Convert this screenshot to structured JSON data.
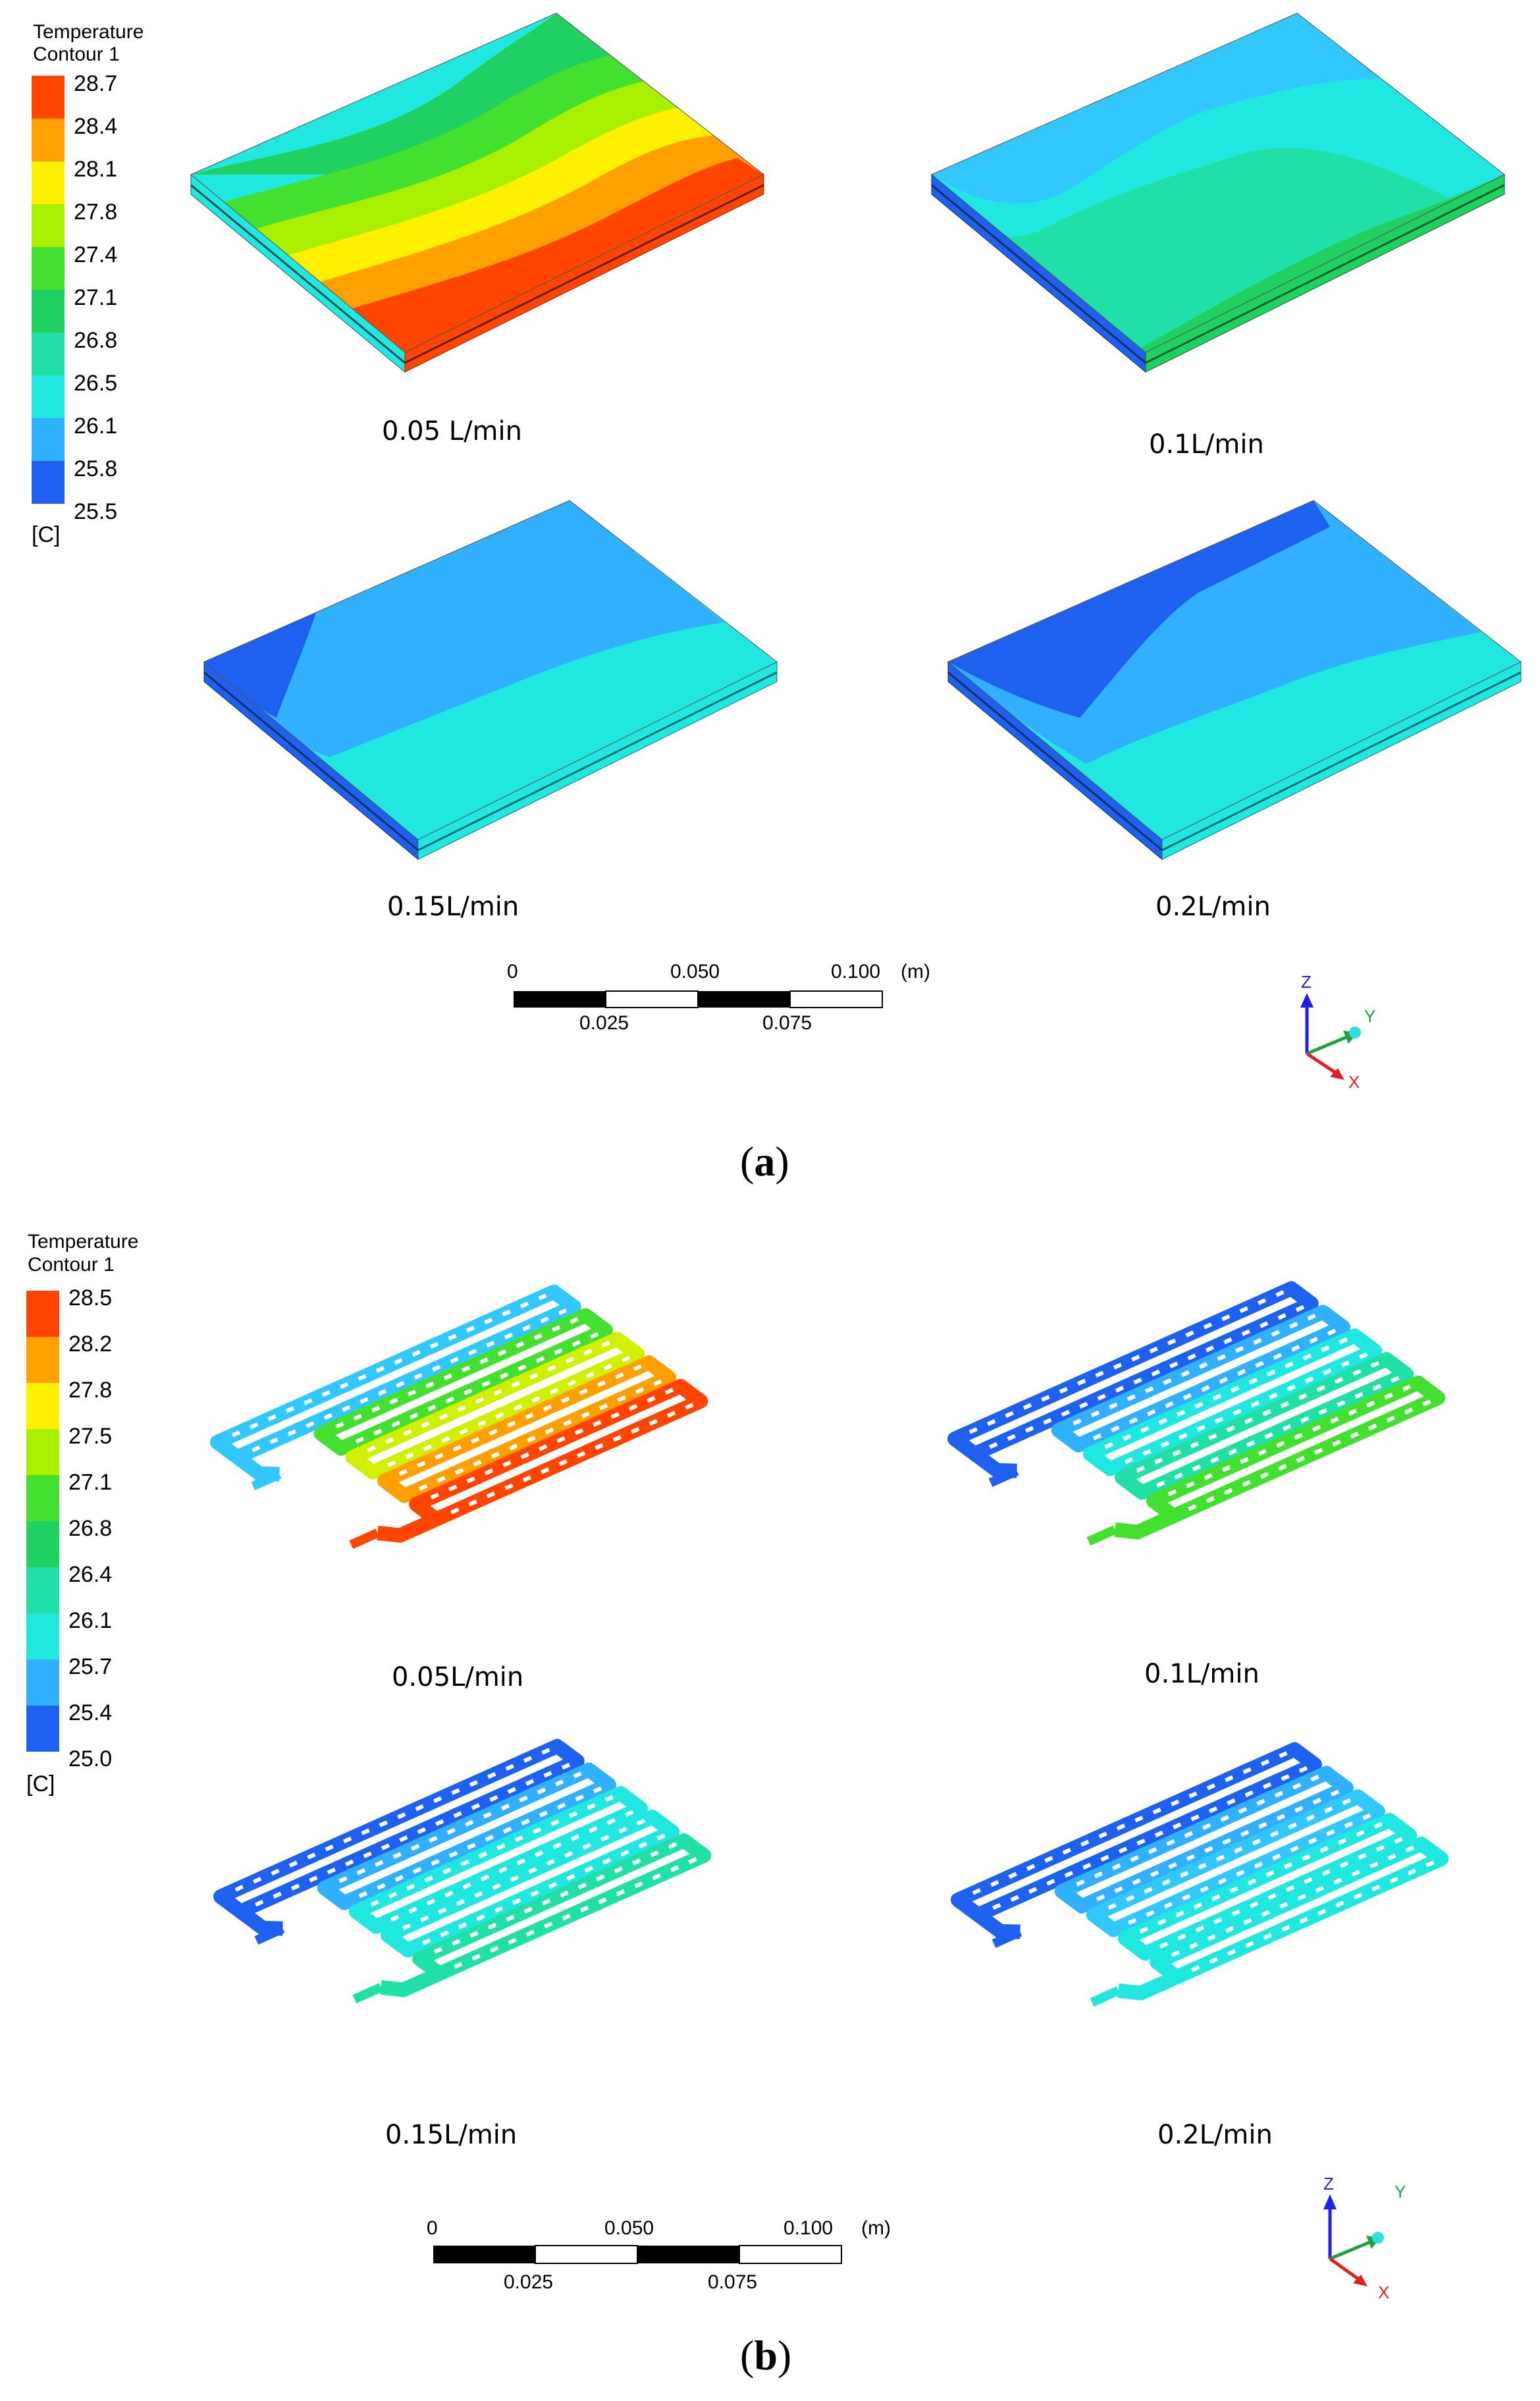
{
  "panels": [
    {
      "id": "a",
      "label_open": "(",
      "label_letter": "a",
      "label_close": ")",
      "legend": {
        "title_line1": "Temperature",
        "title_line2": "Contour 1",
        "ticks": [
          "28.7",
          "28.4",
          "28.1",
          "27.8",
          "27.4",
          "27.1",
          "26.8",
          "26.5",
          "26.1",
          "25.8",
          "25.5"
        ],
        "colors": [
          "#ff4500",
          "#ffa000",
          "#fff000",
          "#a8f000",
          "#44e030",
          "#20d060",
          "#20e0a8",
          "#20e8e0",
          "#30b0ff",
          "#1e60f0"
        ],
        "unit": "[C]"
      },
      "views": [
        {
          "caption": "0.05 L/min",
          "colors": [
            "#ff4500",
            "#ffa000",
            "#fff000",
            "#a8f000",
            "#44e030",
            "#20d060",
            "#20e8e0"
          ]
        },
        {
          "caption": "0.1L/min",
          "colors": [
            "#20d060",
            "#20e0a8",
            "#20e8e0",
            "#30b0ff"
          ]
        },
        {
          "caption": "0.15L/min",
          "colors": [
            "#20e8e0",
            "#30b0ff",
            "#1e60f0"
          ]
        },
        {
          "caption": "0.2L/min",
          "colors": [
            "#20e8e0",
            "#30b0ff",
            "#1e60f0"
          ]
        }
      ],
      "scale_bar": {
        "top_labels": [
          "0",
          "0.050",
          "0.100"
        ],
        "bottom_labels": [
          "0.025",
          "0.075"
        ],
        "unit": "(m)"
      },
      "triad": {
        "z": "Z",
        "y": "Y",
        "x": "X"
      }
    },
    {
      "id": "b",
      "label_open": "(",
      "label_letter": "b",
      "label_close": ")",
      "legend": {
        "title_line1": "Temperature",
        "title_line2": "Contour 1",
        "ticks": [
          "28.5",
          "28.2",
          "27.8",
          "27.5",
          "27.1",
          "26.8",
          "26.4",
          "26.1",
          "25.7",
          "25.4",
          "25.0"
        ],
        "colors": [
          "#ff4500",
          "#ffa000",
          "#fff000",
          "#a8f000",
          "#44e030",
          "#20d060",
          "#20e0a8",
          "#20e8e0",
          "#30b0ff",
          "#1e60f0"
        ],
        "unit": "[C]"
      },
      "views": [
        {
          "caption": "0.05L/min",
          "colors": [
            "#30c8ff",
            "#44e030",
            "#d0f000",
            "#ffa000",
            "#ff4500"
          ]
        },
        {
          "caption": "0.1L/min",
          "colors": [
            "#1e60f0",
            "#30b0ff",
            "#20e8e0",
            "#20e0a8",
            "#44e030"
          ]
        },
        {
          "caption": "0.15L/min",
          "colors": [
            "#1e60f0",
            "#30b0ff",
            "#20e8e0",
            "#20e8e0",
            "#20e0a8"
          ]
        },
        {
          "caption": "0.2L/min",
          "colors": [
            "#1e60f0",
            "#30b0ff",
            "#30c8ff",
            "#20e8e0",
            "#20e8e0"
          ]
        }
      ],
      "scale_bar": {
        "top_labels": [
          "0",
          "0.050",
          "0.100"
        ],
        "bottom_labels": [
          "0.025",
          "0.075"
        ],
        "unit": "(m)"
      },
      "triad": {
        "z": "Z",
        "y": "Y",
        "x": "X"
      }
    }
  ],
  "axis_colors": {
    "z": "#2020e0",
    "y": "#20a040",
    "x": "#e02020"
  }
}
